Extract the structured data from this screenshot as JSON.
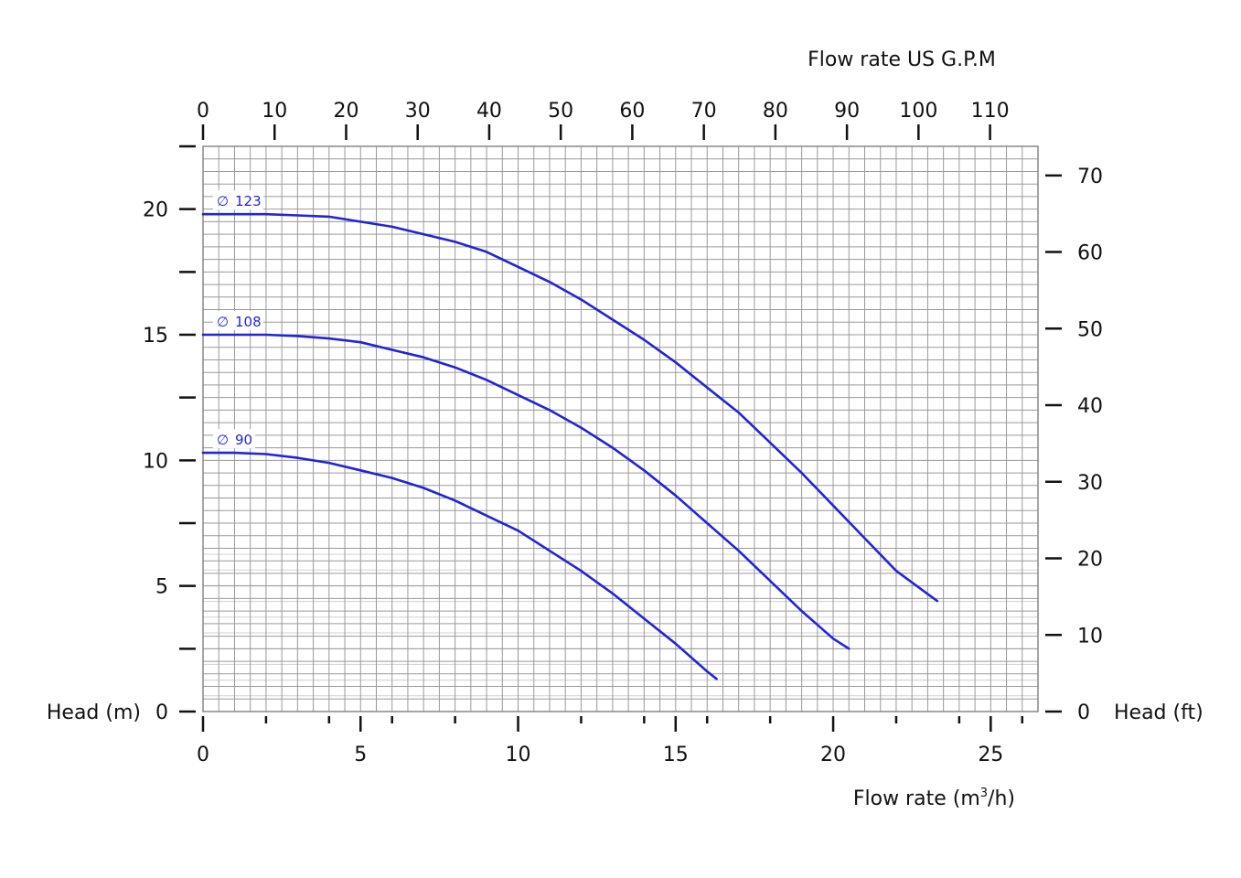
{
  "chart_data": {
    "type": "line",
    "top_axis_title": "Flow rate US  G.P.M",
    "bottom_axis_title_prefix": "Flow rate  (m",
    "bottom_axis_title_sup": "3",
    "bottom_axis_title_suffix": "/h)",
    "left_axis_title": "Head (m)",
    "right_axis_title": "Head (ft)",
    "x_bottom": {
      "ticks": [
        "0",
        "5",
        "10",
        "15",
        "20",
        "25"
      ],
      "values": [
        0,
        5,
        10,
        15,
        20,
        25
      ],
      "range": [
        0,
        26.5
      ]
    },
    "x_top": {
      "ticks": [
        "0",
        "10",
        "20",
        "30",
        "40",
        "50",
        "60",
        "70",
        "80",
        "90",
        "100",
        "110"
      ],
      "values": [
        0,
        10,
        20,
        30,
        40,
        50,
        60,
        70,
        80,
        90,
        100,
        110
      ],
      "range": [
        0,
        116.7
      ]
    },
    "y_left": {
      "ticks": [
        "0",
        "5",
        "10",
        "15",
        "20"
      ],
      "values": [
        0,
        5,
        10,
        15,
        20
      ],
      "range": [
        0,
        22.5
      ]
    },
    "y_right": {
      "ticks": [
        "0",
        "10",
        "20",
        "30",
        "40",
        "50",
        "60",
        "70"
      ],
      "values": [
        0,
        10,
        20,
        30,
        40,
        50,
        60,
        70
      ],
      "range": [
        0,
        73.8
      ]
    },
    "grid": true,
    "series": [
      {
        "name": "Ø 123",
        "label_text": "123",
        "color": "#2323d8",
        "x": [
          0,
          1,
          2,
          3,
          4,
          5,
          6,
          7,
          8,
          9,
          10,
          11,
          12,
          13,
          14,
          15,
          16,
          17,
          18,
          19,
          20,
          21,
          22,
          23.3
        ],
        "y": [
          19.8,
          19.8,
          19.8,
          19.75,
          19.7,
          19.5,
          19.3,
          19.0,
          18.7,
          18.3,
          17.7,
          17.1,
          16.4,
          15.6,
          14.8,
          13.9,
          12.9,
          11.9,
          10.7,
          9.5,
          8.2,
          6.9,
          5.6,
          4.4
        ]
      },
      {
        "name": "Ø 108",
        "label_text": "108",
        "color": "#2323d8",
        "x": [
          0,
          1,
          2,
          3,
          4,
          5,
          6,
          7,
          8,
          9,
          10,
          11,
          12,
          13,
          14,
          15,
          16,
          17,
          18,
          19,
          20,
          20.5
        ],
        "y": [
          15.0,
          15.0,
          15.0,
          14.95,
          14.85,
          14.7,
          14.4,
          14.1,
          13.7,
          13.2,
          12.6,
          12.0,
          11.3,
          10.5,
          9.6,
          8.6,
          7.5,
          6.4,
          5.2,
          4.0,
          2.9,
          2.5
        ]
      },
      {
        "name": "Ø 90",
        "label_text": "90",
        "color": "#2323d8",
        "x": [
          0,
          1,
          2,
          3,
          4,
          5,
          6,
          7,
          8,
          9,
          10,
          11,
          12,
          13,
          14,
          15,
          16,
          16.3
        ],
        "y": [
          10.3,
          10.3,
          10.25,
          10.1,
          9.9,
          9.6,
          9.3,
          8.9,
          8.4,
          7.8,
          7.2,
          6.4,
          5.6,
          4.7,
          3.7,
          2.7,
          1.6,
          1.3
        ]
      }
    ]
  }
}
